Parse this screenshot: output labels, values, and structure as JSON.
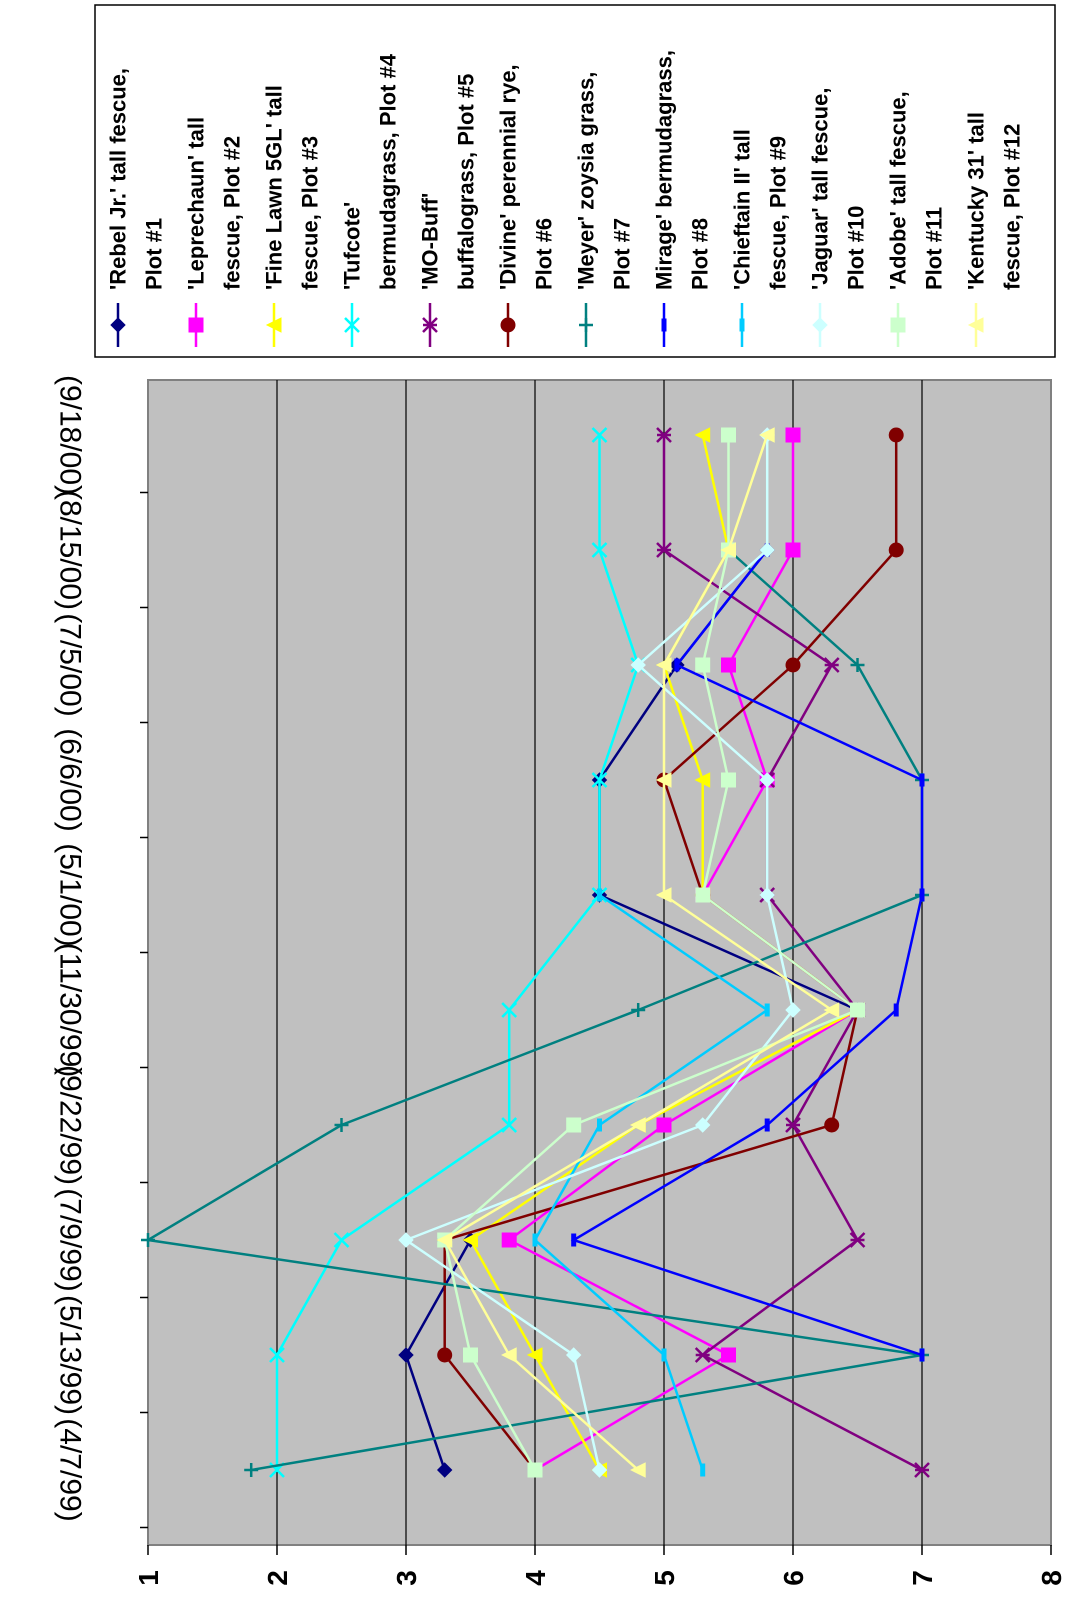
{
  "chart_data": {
    "type": "line",
    "orientation": "rotated-90-clockwise",
    "x_labels": [
      "(4/7/99)",
      "(5/13/99)",
      "(7/9/99)",
      "(9/22/99)",
      "(11/30/99)",
      "(5/1/00)",
      "(6/6/00)",
      "(7/5/00)",
      "(8/15/00)",
      "(9/18/00)"
    ],
    "ylim": [
      1,
      8
    ],
    "y_ticks": [
      "1",
      "2",
      "3",
      "4",
      "5",
      "6",
      "7",
      "8"
    ],
    "grid": "horizontal major gridlines at every integer",
    "legend_position": "right",
    "series": [
      {
        "name_lines": [
          "'Rebel Jr.' tall fescue,",
          "Plot #1"
        ],
        "color": "#000080",
        "marker": "diamond",
        "values": [
          3.3,
          3.0,
          3.5,
          null,
          6.5,
          4.5,
          4.5,
          5.1,
          5.8,
          null
        ]
      },
      {
        "name_lines": [
          "'Leprechaun' tall",
          "fescue, Plot #2"
        ],
        "color": "#FF00FF",
        "marker": "square",
        "values": [
          4.0,
          5.5,
          3.8,
          5.0,
          6.5,
          5.3,
          5.8,
          5.5,
          6.0,
          6.0
        ]
      },
      {
        "name_lines": [
          "'Fine Lawn 5GL' tall",
          "fescue, Plot #3"
        ],
        "color": "#FFFF00",
        "marker": "triangle",
        "values": [
          4.5,
          4.0,
          3.5,
          4.8,
          6.5,
          5.3,
          5.3,
          5.0,
          5.5,
          5.3
        ]
      },
      {
        "name_lines": [
          "'Tufcote'",
          "bermudagrass, Plot #4"
        ],
        "color": "#00FFFF",
        "marker": "x",
        "values": [
          2.0,
          2.0,
          2.5,
          3.8,
          3.8,
          4.5,
          4.5,
          4.8,
          4.5,
          4.5
        ]
      },
      {
        "name_lines": [
          "'MO-Buff'",
          "buffalograss, Plot #5"
        ],
        "color": "#800080",
        "marker": "star",
        "values": [
          7.0,
          5.3,
          6.5,
          6.0,
          6.5,
          5.8,
          5.8,
          6.3,
          5.0,
          5.0
        ]
      },
      {
        "name_lines": [
          "'Divine' perennial rye,",
          "Plot #6"
        ],
        "color": "#800000",
        "marker": "circle",
        "values": [
          4.0,
          3.3,
          3.3,
          6.3,
          6.5,
          5.3,
          5.0,
          6.0,
          6.8,
          6.8
        ]
      },
      {
        "name_lines": [
          "'Meyer' zoysia grass,",
          "Plot #7"
        ],
        "color": "#008080",
        "marker": "plus",
        "values": [
          1.8,
          7.0,
          1.0,
          2.5,
          4.8,
          7.0,
          7.0,
          6.5,
          5.5,
          null
        ]
      },
      {
        "name_lines": [
          "Mirage' bermudagrass,",
          "Plot #8"
        ],
        "color": "#0000FF",
        "marker": "bar",
        "values": [
          null,
          7.0,
          4.3,
          5.8,
          6.8,
          7.0,
          7.0,
          5.1,
          5.8,
          null
        ]
      },
      {
        "name_lines": [
          "'Chieftain II' tall",
          "fescue, Plot #9"
        ],
        "color": "#00CCFF",
        "marker": "bar",
        "values": [
          5.3,
          5.0,
          4.0,
          4.5,
          5.8,
          4.5,
          null,
          null,
          null,
          null
        ]
      },
      {
        "name_lines": [
          "'Jaguar' tall fescue,",
          "Plot #10"
        ],
        "color": "#CCFFFF",
        "marker": "diamond",
        "values": [
          4.5,
          4.3,
          3.0,
          5.3,
          6.0,
          5.8,
          5.8,
          4.8,
          5.8,
          5.8
        ]
      },
      {
        "name_lines": [
          "'Adobe' tall fescue,",
          "Plot #11"
        ],
        "color": "#CCFFCC",
        "marker": "square",
        "values": [
          4.0,
          3.5,
          3.3,
          4.3,
          6.5,
          5.3,
          5.5,
          5.3,
          5.5,
          5.5
        ]
      },
      {
        "name_lines": [
          "'Kentucky 31' tall",
          "fescue, Plot #12"
        ],
        "color": "#FFFF99",
        "marker": "triangle",
        "values": [
          4.8,
          3.8,
          3.3,
          4.8,
          6.3,
          5.0,
          5.0,
          5.0,
          5.5,
          5.8
        ]
      }
    ]
  }
}
